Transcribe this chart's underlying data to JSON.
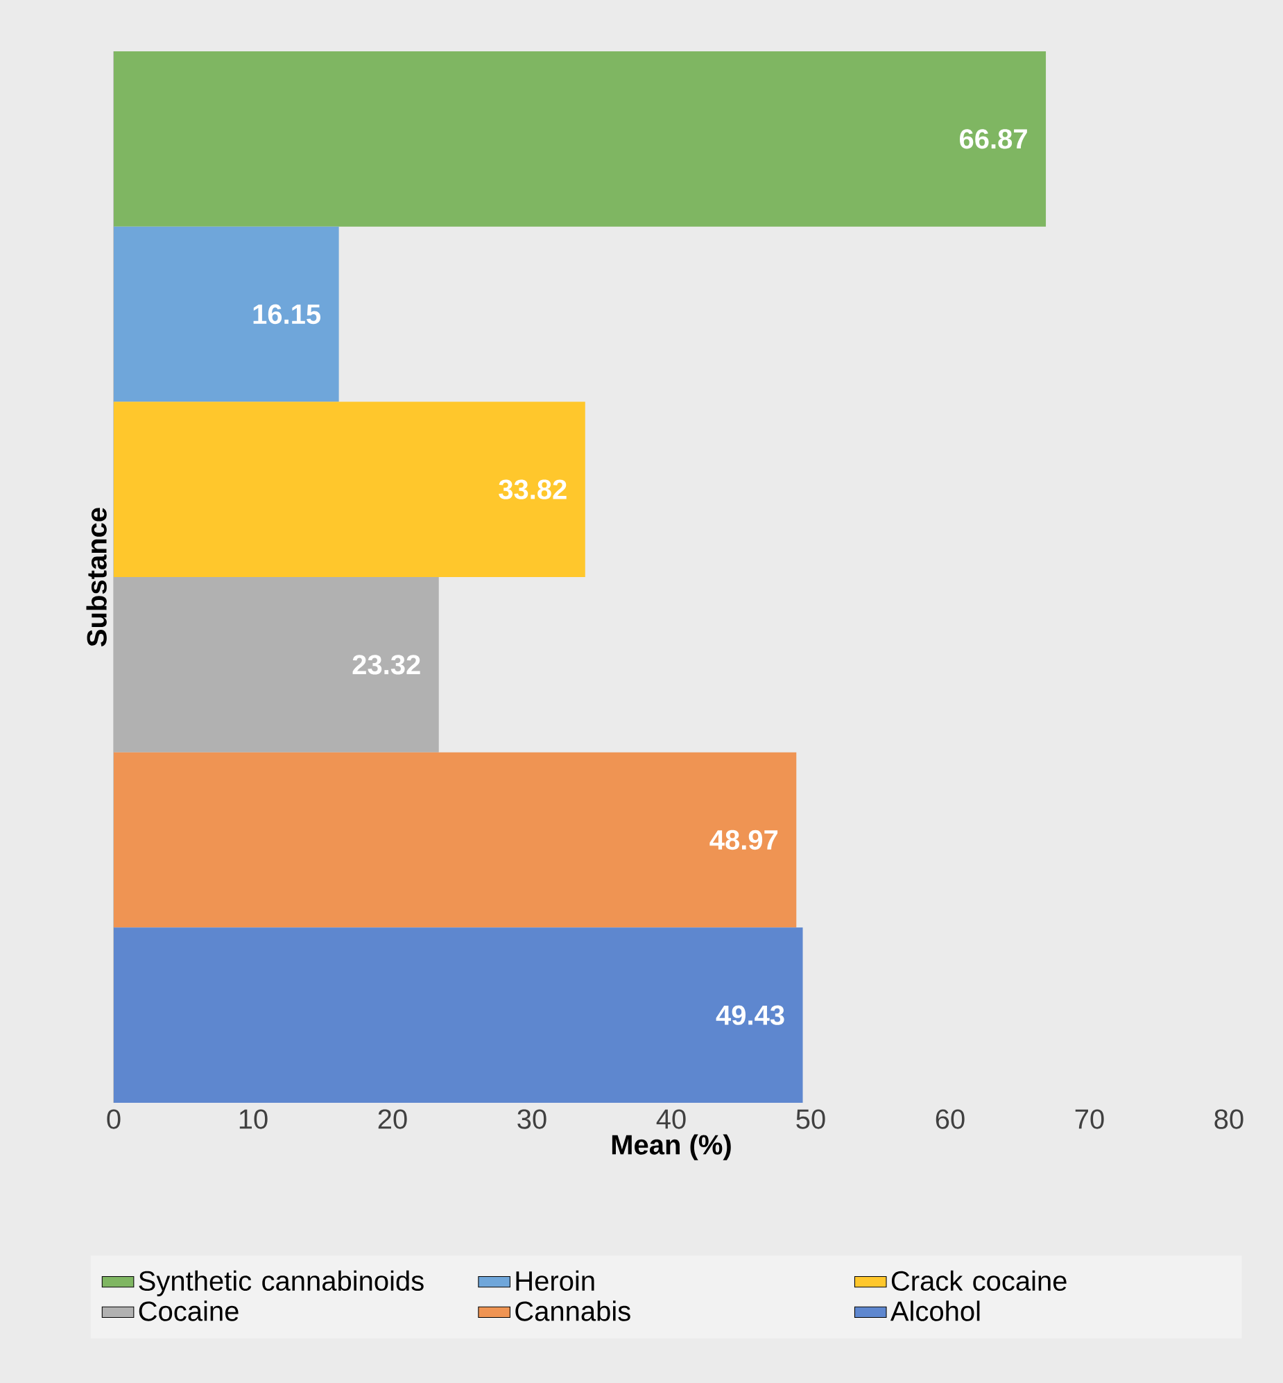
{
  "chart_data": {
    "type": "bar",
    "orientation": "horizontal",
    "xlabel": "Mean (%)",
    "ylabel": "Substance",
    "categories": [
      null
    ],
    "series": [
      {
        "name": "Synthetic cannabinoids",
        "color": "#7fb662",
        "values": [
          66.87
        ]
      },
      {
        "name": "Heroin",
        "color": "#6fa6da",
        "values": [
          16.15
        ]
      },
      {
        "name": "Crack cocaine",
        "color": "#ffc72c",
        "values": [
          33.82
        ]
      },
      {
        "name": "Cocaine",
        "color": "#b1b1b1",
        "values": [
          23.32
        ]
      },
      {
        "name": "Cannabis",
        "color": "#ef9453",
        "values": [
          48.97
        ]
      },
      {
        "name": "Alcohol",
        "color": "#5e87cf",
        "values": [
          49.43
        ]
      }
    ],
    "xlim": [
      0,
      80
    ],
    "xticks": [
      0,
      10,
      20,
      30,
      40,
      50,
      60,
      70,
      80
    ],
    "grid": false,
    "legend": "bottom",
    "data_labels": true
  }
}
